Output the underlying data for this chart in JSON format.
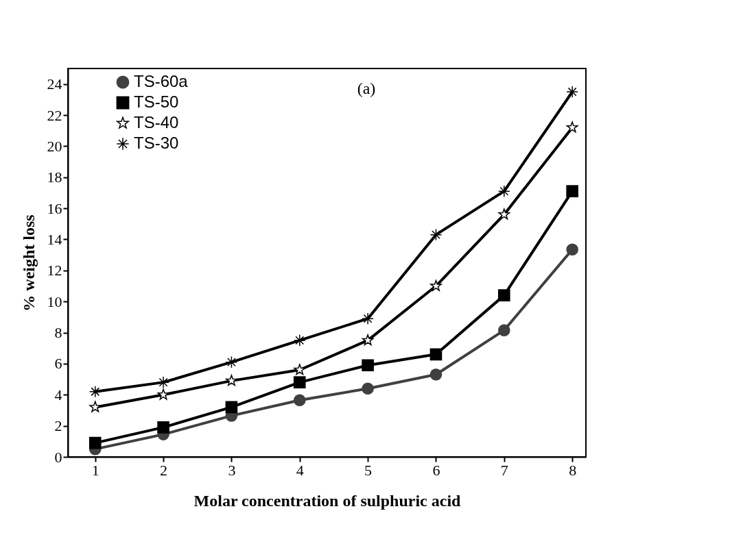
{
  "chart_data": {
    "type": "line",
    "xlabel": "Molar concentration of sulphuric acid",
    "ylabel": "% weight loss",
    "x": [
      1,
      2,
      3,
      4,
      5,
      6,
      7,
      8
    ],
    "series": [
      {
        "name": "TS-60a",
        "color": "#404040",
        "marker": "circle",
        "values": [
          0.5,
          1.45,
          2.65,
          3.65,
          4.4,
          5.3,
          8.15,
          13.35
        ]
      },
      {
        "name": "TS-50",
        "color": "#000000",
        "marker": "square",
        "values": [
          0.9,
          1.9,
          3.2,
          4.8,
          5.9,
          6.6,
          10.4,
          17.1
        ]
      },
      {
        "name": "TS-40",
        "color": "#000000",
        "marker": "star",
        "values": [
          3.2,
          4.0,
          4.9,
          5.6,
          7.5,
          11.0,
          15.6,
          21.2
        ]
      },
      {
        "name": "TS-30",
        "color": "#000000",
        "marker": "cross",
        "values": [
          4.2,
          4.8,
          6.1,
          7.5,
          8.9,
          14.3,
          17.1,
          23.5
        ]
      }
    ],
    "xlim": [
      0.6,
      8.2
    ],
    "xticks": [
      1,
      2,
      3,
      4,
      5,
      6,
      7,
      8
    ],
    "ylim": [
      0,
      25
    ],
    "yticks": [
      0,
      2,
      4,
      6,
      8,
      10,
      12,
      14,
      16,
      18,
      20,
      22,
      24
    ],
    "annotations": [
      "(a)"
    ],
    "legend": "top left",
    "grid": false,
    "line_style": "solid"
  }
}
